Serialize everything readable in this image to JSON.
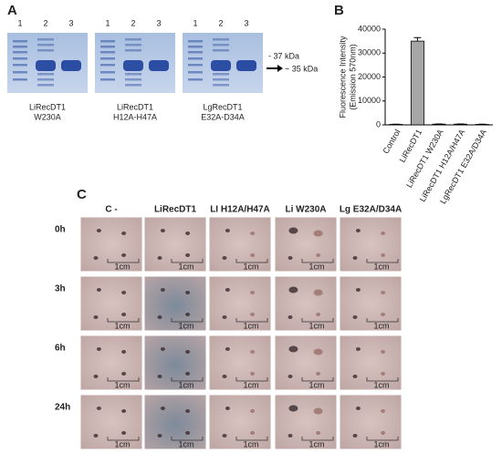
{
  "panel_a": {
    "letter": "A",
    "lanes": [
      "1",
      "2",
      "3"
    ],
    "gels": [
      {
        "caption": [
          "LiRecDT1",
          "W230A"
        ]
      },
      {
        "caption": [
          "LiRecDT1",
          "H12A-H47A"
        ]
      },
      {
        "caption": [
          "LgRecDT1",
          "E32A-D34A"
        ]
      }
    ],
    "markers": [
      "- 37 kDa",
      "~ 35 kDa"
    ]
  },
  "chart_data": {
    "type": "bar",
    "letter": "B",
    "ylabel": [
      "Fluorescence Intensity",
      "(Emission 570nm)"
    ],
    "categories": [
      "Control",
      "LiRecDT1",
      "LiRecDT1 W230A",
      "LiRecDT1 H12A/H47A",
      "LgRecDT1 E32A/D34A"
    ],
    "values": [
      200,
      35000,
      300,
      300,
      200
    ],
    "errors": [
      100,
      1500,
      100,
      100,
      100
    ],
    "color": "#a6a6a6",
    "ylim": [
      0,
      40000
    ],
    "yticks": [
      0,
      10000,
      20000,
      30000,
      40000
    ]
  },
  "panel_c": {
    "letter": "C",
    "columns": [
      "C -",
      "LiRecDT1",
      "LI H12A/H47A",
      "Li W230A",
      "Lg E32A/D34A"
    ],
    "rows": [
      "0h",
      "3h",
      "6h",
      "24h"
    ],
    "scale_label": "1cm"
  }
}
